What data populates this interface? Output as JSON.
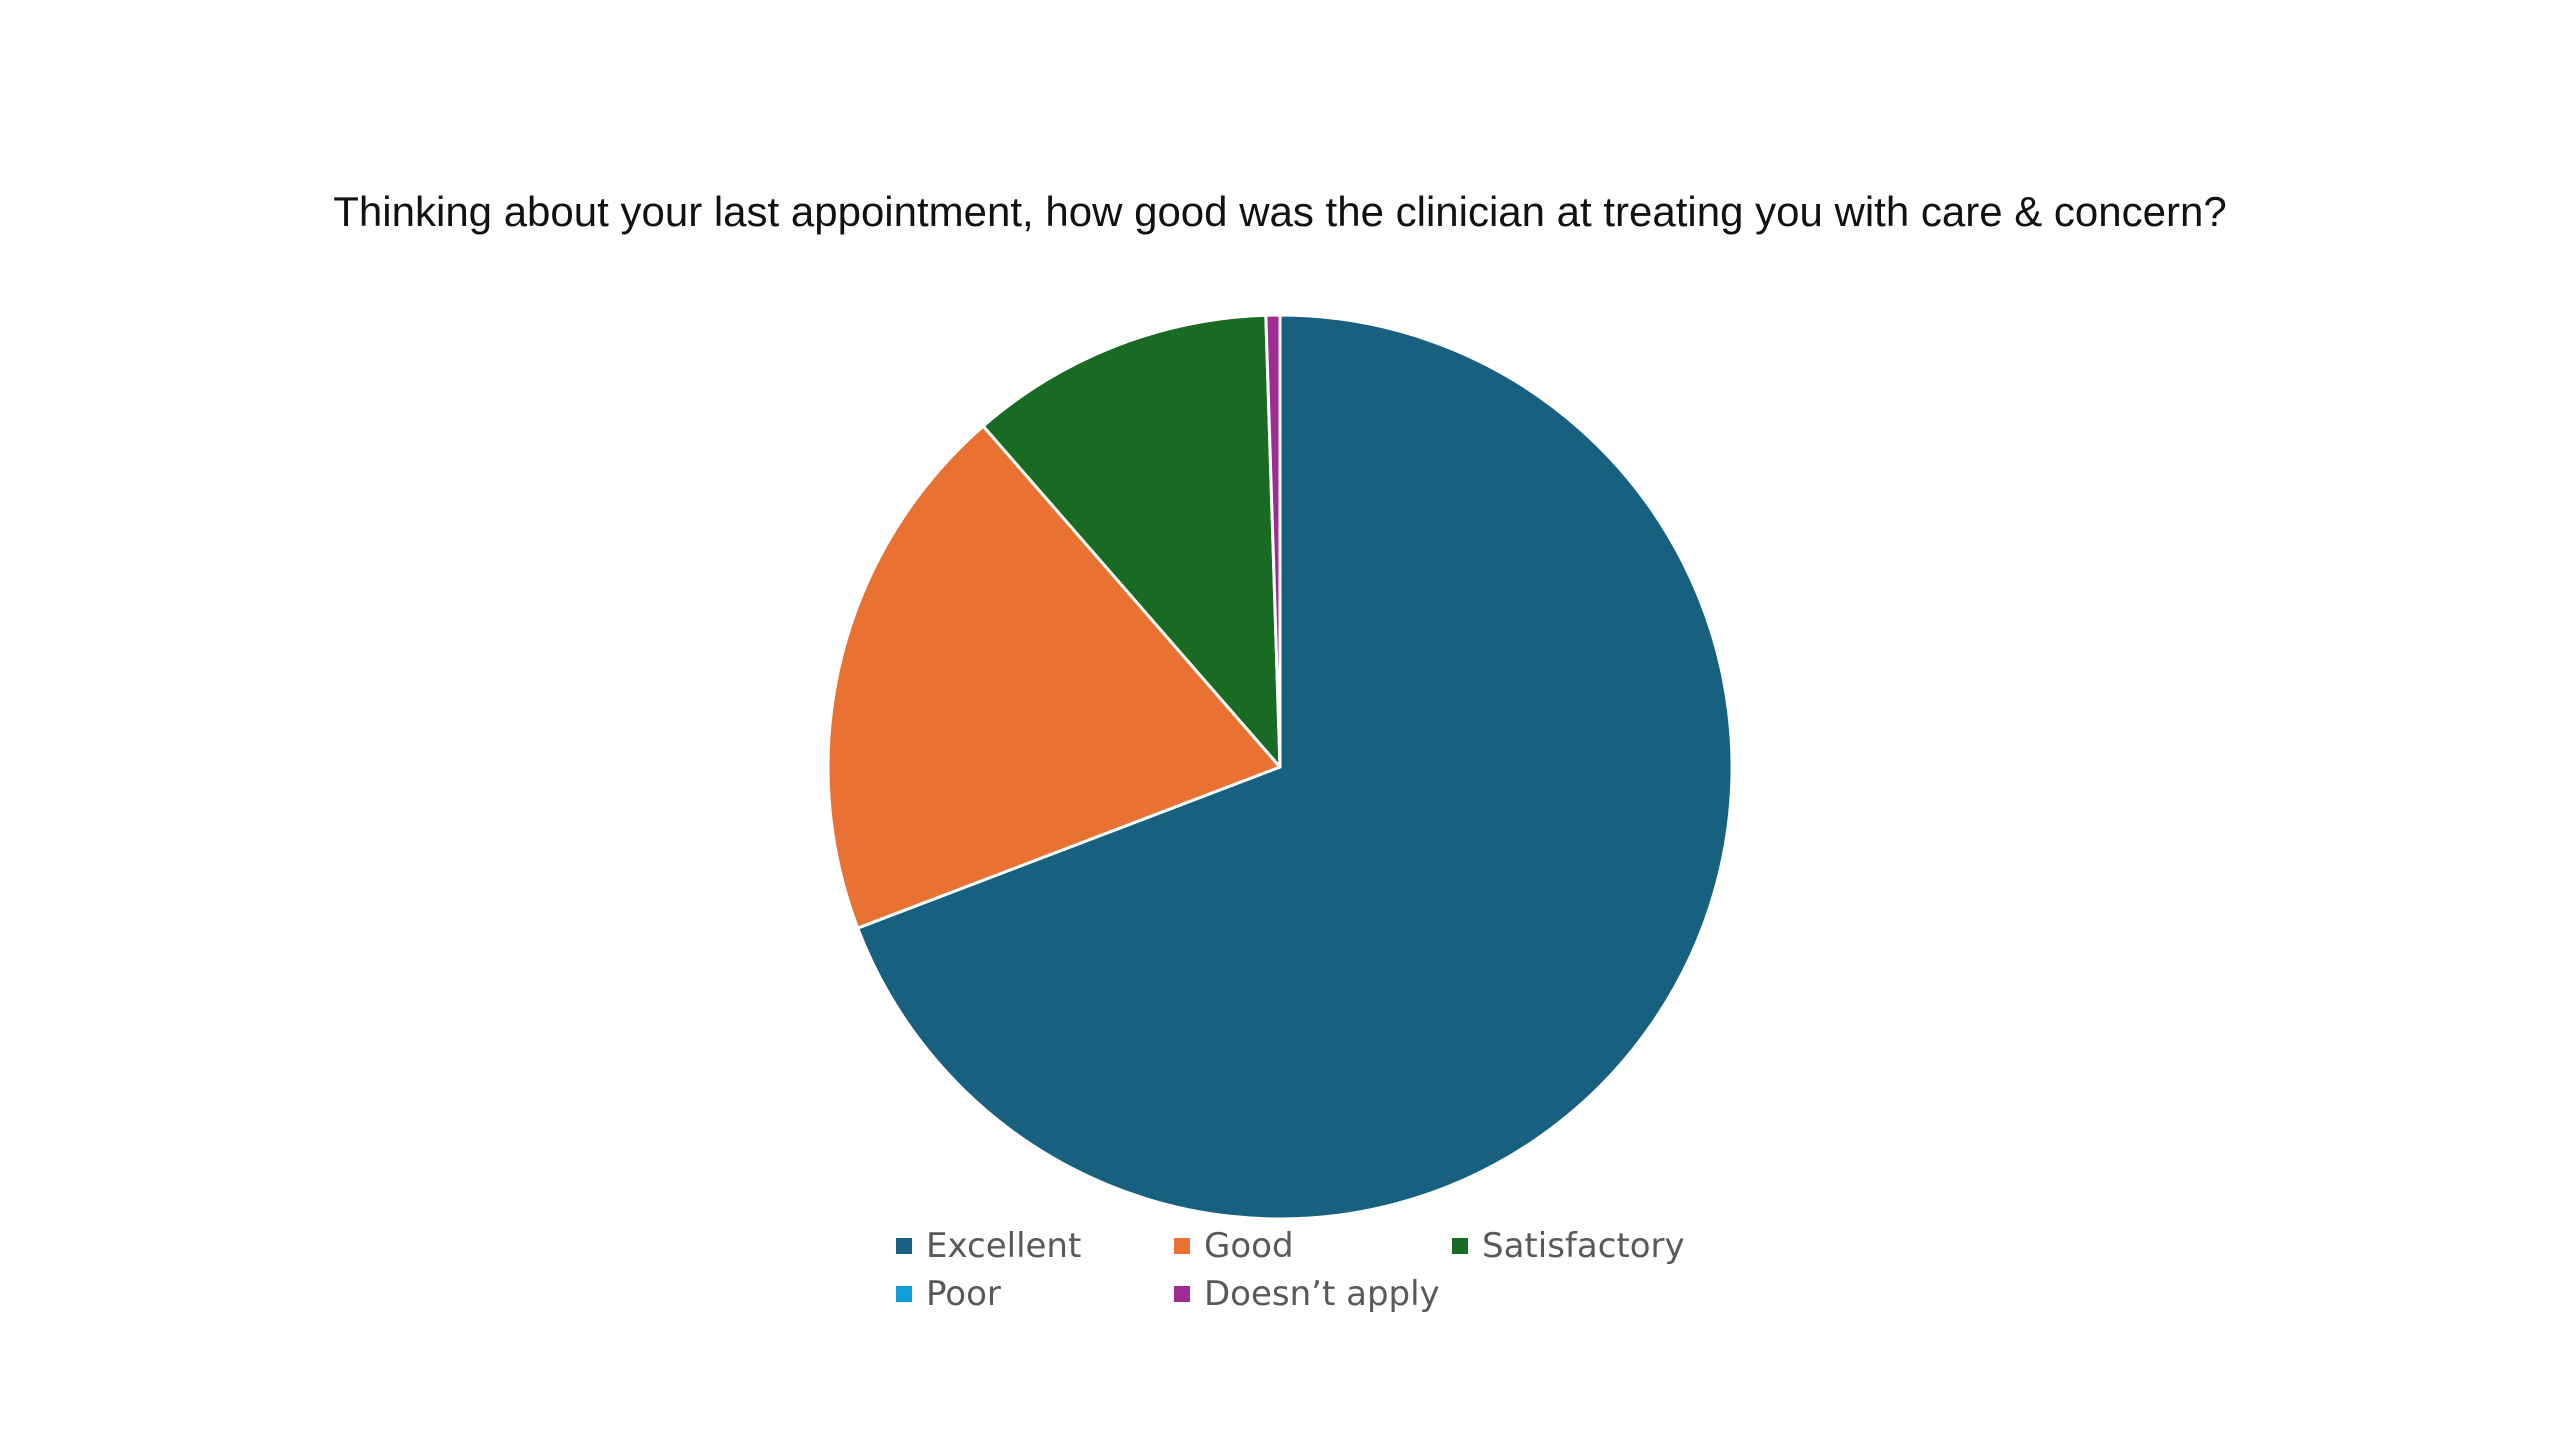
{
  "chart_data": {
    "type": "pie",
    "title": "Thinking about your last appointment, how good was the clinician at treating you with care & concern?",
    "categories": [
      "Excellent",
      "Good",
      "Satisfactory",
      "Poor",
      "Doesn’t apply"
    ],
    "values": [
      69.2,
      19.4,
      10.9,
      0.0,
      0.5
    ],
    "colors": [
      "#176080",
      "#E97132",
      "#196B24",
      "#0F9ED5",
      "#A02B93"
    ],
    "legend_position": "bottom"
  }
}
